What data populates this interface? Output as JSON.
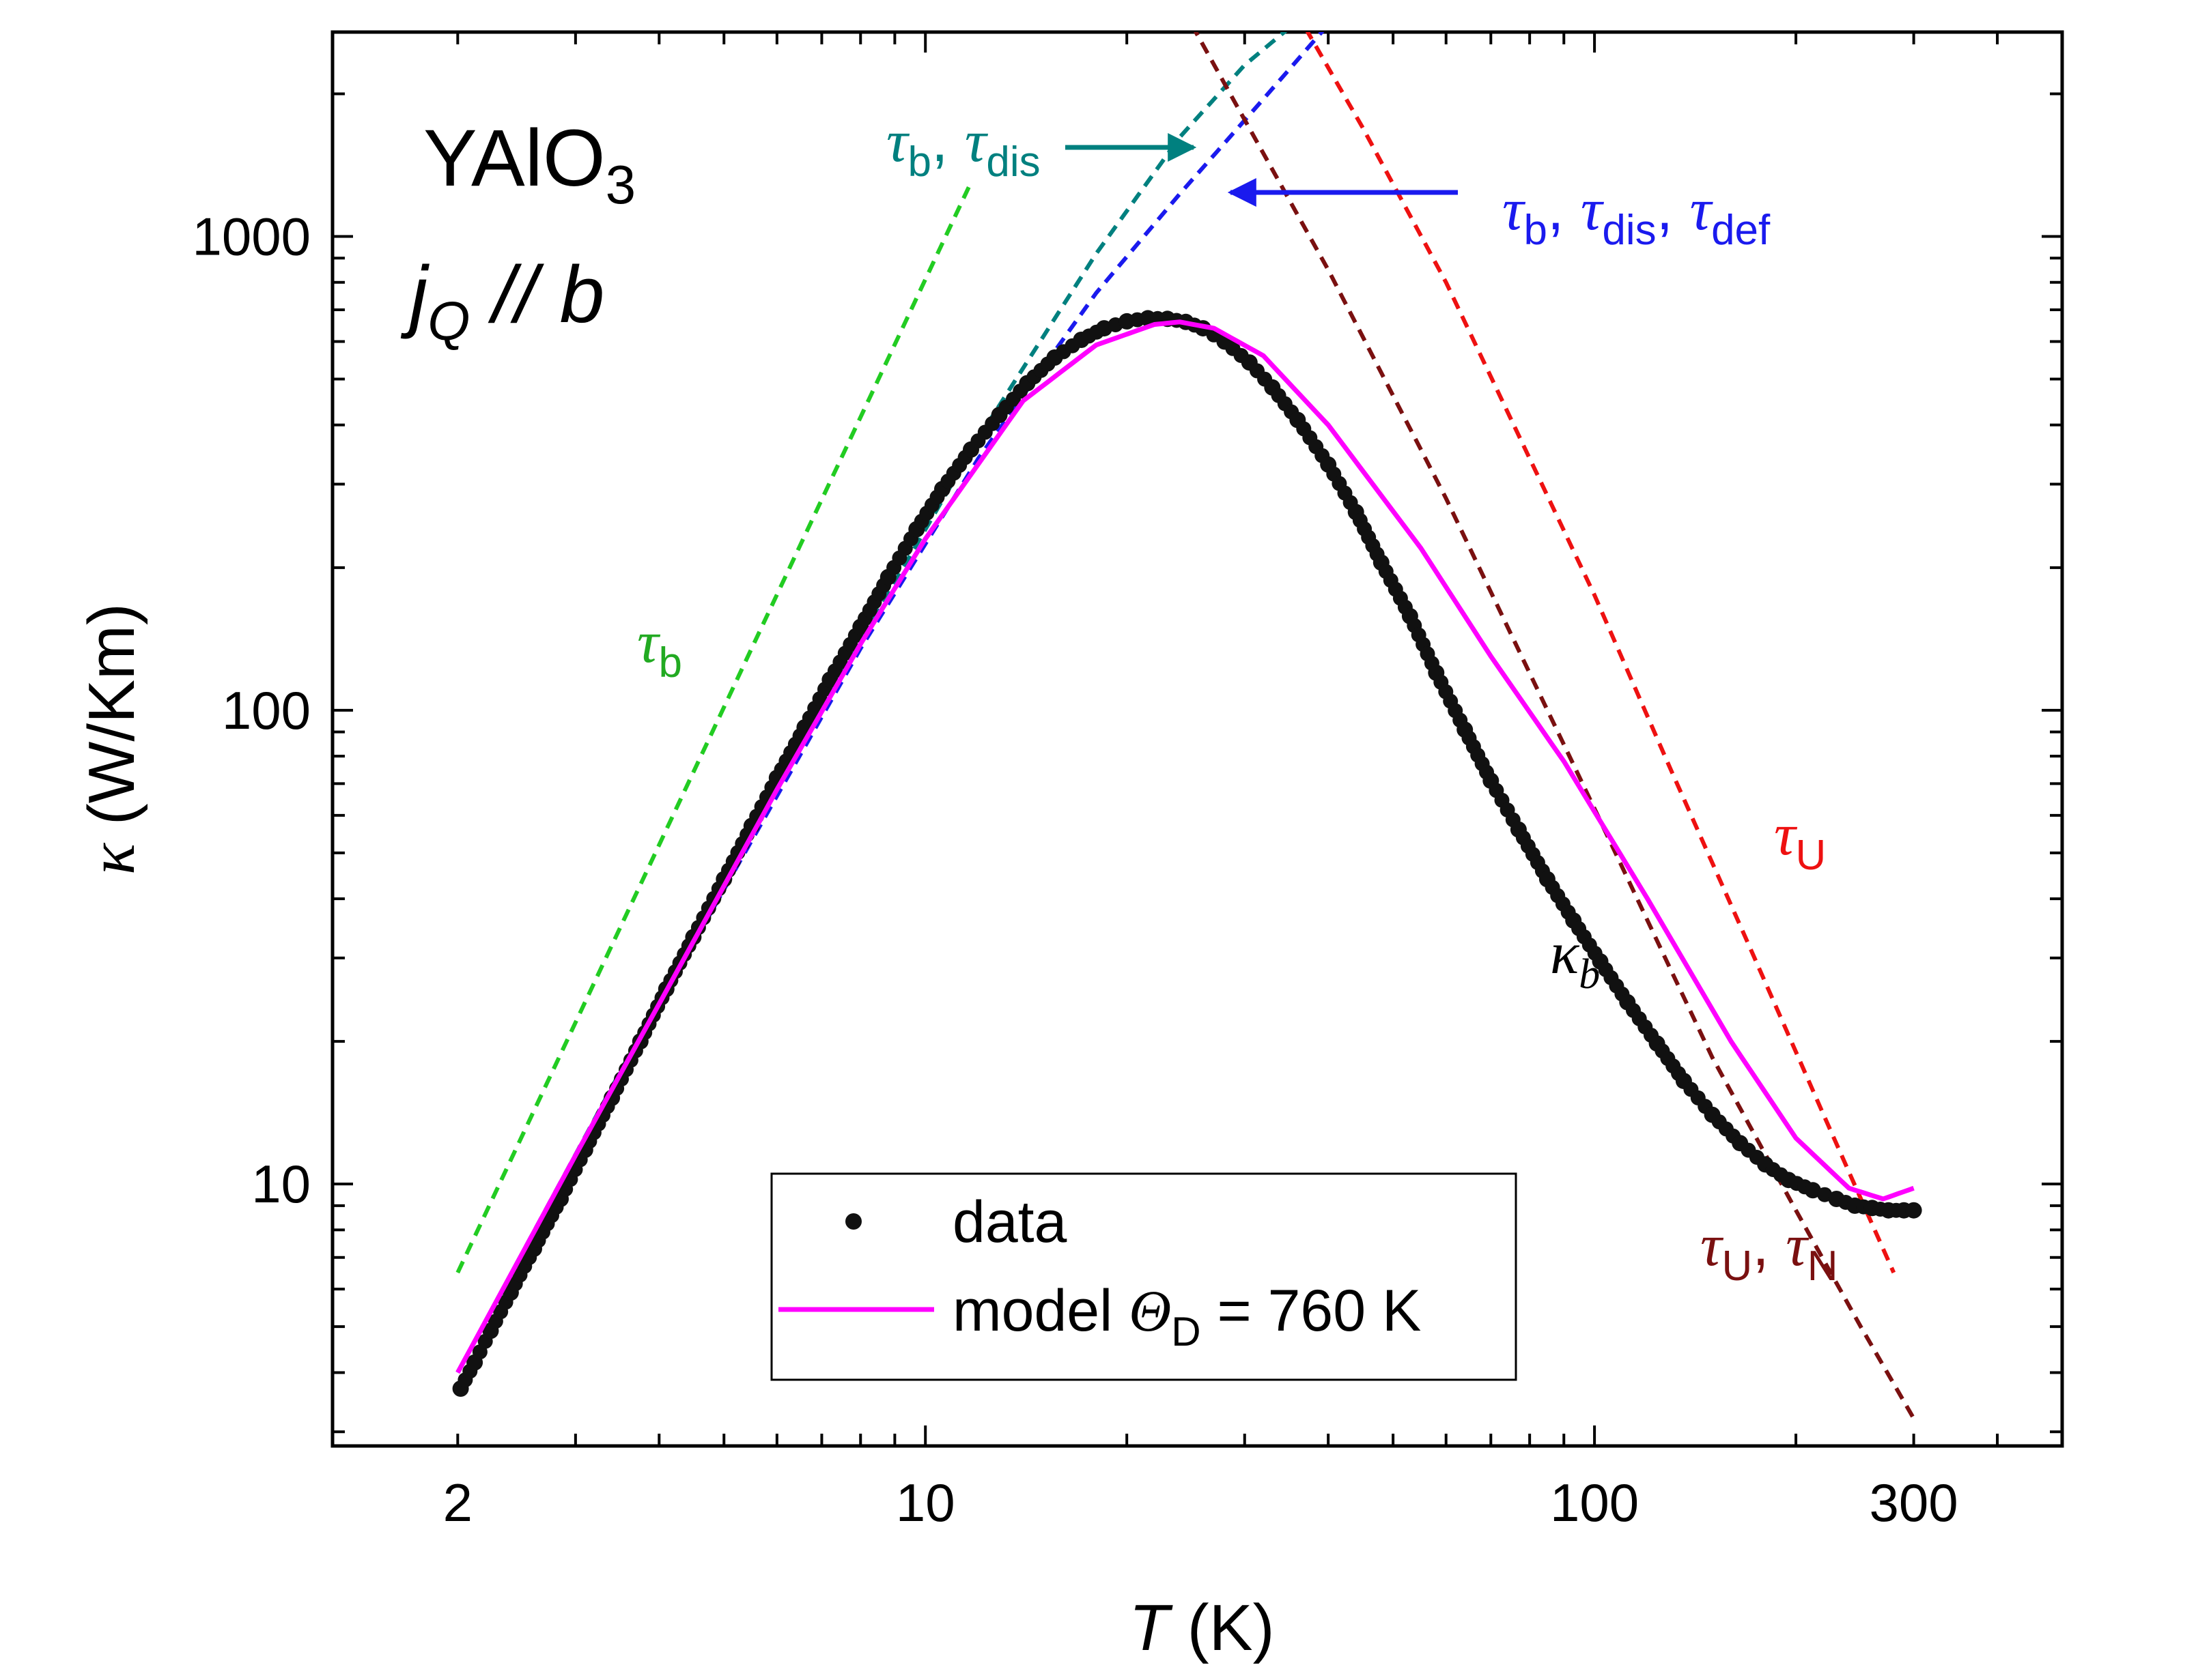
{
  "chart_data": {
    "type": "scatter",
    "title": "",
    "sample": {
      "formula_main": "YAlO",
      "formula_sub": "3",
      "direction_prefix": "j",
      "direction_sub": "Q",
      "direction_suffix": " // b"
    },
    "xlabel": {
      "var": "T",
      "unit": " (K)"
    },
    "ylabel": {
      "var": "κ",
      "unit": " (W/Km)"
    },
    "xscale": "log",
    "yscale": "log",
    "xlim": [
      1.3,
      500
    ],
    "ylim": [
      2.8,
      2700
    ],
    "xticks": [
      2,
      10,
      100,
      300
    ],
    "yticks": [
      10,
      100,
      1000
    ],
    "series": [
      {
        "name": "data",
        "kind": "points",
        "color": "#111111",
        "x": [
          2.02,
          2.12,
          2.24,
          2.4,
          2.6,
          2.85,
          3.1,
          3.4,
          3.75,
          4.1,
          4.5,
          5.0,
          5.5,
          6.0,
          6.6,
          7.2,
          8.0,
          8.8,
          9.7,
          10.6,
          11.7,
          12.9,
          14.2,
          15.6,
          17.1,
          18.5,
          20.0,
          21.5,
          23.0,
          24.5,
          26.0,
          28.0,
          30.5,
          33.0,
          36.0,
          40.0,
          44.0,
          48.0,
          53.0,
          58.0,
          64.0,
          70.0,
          77.0,
          85.0,
          93.0,
          102.0,
          112.0,
          124.0,
          136.0,
          150.0,
          165.0,
          180.0,
          195.0,
          212.0,
          230.0,
          245.0,
          260.0,
          275.0,
          290.0,
          300.0
        ],
        "y": [
          3.7,
          4.2,
          4.9,
          5.9,
          7.3,
          9.3,
          11.8,
          15.2,
          20.0,
          25.8,
          33.2,
          44.0,
          57.0,
          72.0,
          92.0,
          116.0,
          150.0,
          191.0,
          241.0,
          293.0,
          355.0,
          420.0,
          490.0,
          555.0,
          605.0,
          640.0,
          662.0,
          672.0,
          670.0,
          660.0,
          640.0,
          600.0,
          542.0,
          480.0,
          410.0,
          330.0,
          262.0,
          205.0,
          158.0,
          120.0,
          91.0,
          71.0,
          56.0,
          44.0,
          36.0,
          29.5,
          24.2,
          19.8,
          16.5,
          14.0,
          12.2,
          11.0,
          10.2,
          9.7,
          9.3,
          9.0,
          8.9,
          8.8,
          8.8,
          8.8
        ]
      },
      {
        "name": "model ΘD = 760 K",
        "kind": "line",
        "style": "solid",
        "color": "#ff00ff",
        "x": [
          2.0,
          3.0,
          4.0,
          6.0,
          8.0,
          10.0,
          14.0,
          18.0,
          22.0,
          24.0,
          27.0,
          32.0,
          40.0,
          55.0,
          70.0,
          90.0,
          120.0,
          160.0,
          200.0,
          240.0,
          270.0,
          300.0
        ],
        "y": [
          4.0,
          11.5,
          24.0,
          68.0,
          138.0,
          230.0,
          450.0,
          590.0,
          652.0,
          660.0,
          640.0,
          560.0,
          400.0,
          220.0,
          130.0,
          78.0,
          40.0,
          20.0,
          12.5,
          9.8,
          9.3,
          9.8
        ]
      },
      {
        "name": "τb",
        "kind": "line",
        "style": "dashed",
        "color": "#22cc22",
        "x": [
          2.0,
          11.7
        ],
        "y": [
          6.5,
          1300.0
        ]
      },
      {
        "name": "τb, τdis",
        "kind": "line",
        "style": "dashed",
        "color": "#00807f",
        "x": [
          2.0,
          4.0,
          8.0,
          12.0,
          18.0,
          24.0,
          30.0,
          36.0
        ],
        "y": [
          4.0,
          24.5,
          140.0,
          375.0,
          920.0,
          1620.0,
          2300.0,
          2850.0
        ]
      },
      {
        "name": "τb, τdis, τdef",
        "kind": "line",
        "style": "dashed",
        "color": "#1a1aee",
        "x": [
          2.0,
          4.0,
          8.0,
          12.0,
          18.0,
          24.0,
          32.0,
          40.0
        ],
        "y": [
          4.0,
          24.0,
          135.0,
          340.0,
          760.0,
          1230.0,
          1950.0,
          2800.0
        ]
      },
      {
        "name": "τU",
        "kind": "line",
        "style": "dashed",
        "color": "#ee1111",
        "x": [
          37.0,
          45.0,
          60.0,
          80.0,
          100.0,
          130.0,
          170.0,
          220.0,
          280.0
        ],
        "y": [
          2750.0,
          1700.0,
          800.0,
          340.0,
          175.0,
          75.0,
          32.0,
          14.0,
          6.5
        ]
      },
      {
        "name": "τU, τN",
        "kind": "line",
        "style": "dashed",
        "color": "#7a1010",
        "x": [
          25.0,
          40.0,
          60.0,
          100.0,
          150.0,
          200.0,
          250.0,
          300.0
        ],
        "y": [
          2800.0,
          850.0,
          280.0,
          62.0,
          18.5,
          8.8,
          5.0,
          3.2
        ]
      }
    ],
    "annotations": {
      "tau_b": {
        "main": "τ",
        "sub": "b"
      },
      "tau_b_dis": {
        "m1": "τ",
        "s1": "b",
        "sep": ", ",
        "m2": "τ",
        "s2": "dis"
      },
      "tau_b_dis_def": {
        "m1": "τ",
        "s1": "b",
        "sep1": ", ",
        "m2": "τ",
        "s2": "dis",
        "sep2": ", ",
        "m3": "τ",
        "s3": "def"
      },
      "tau_U": {
        "main": "τ",
        "sub": "U"
      },
      "tau_U_N": {
        "m1": "τ",
        "s1": "U",
        "sep": ", ",
        "m2": "τ",
        "s2": "N"
      },
      "kappa_b": {
        "main": "κ",
        "sub": "b"
      }
    },
    "legend": {
      "position": "bottom-center",
      "entries": [
        {
          "label": "data"
        },
        {
          "label_prefix": "model ",
          "label_sym": "Θ",
          "label_sub": "D",
          "label_suffix": " = 760 K"
        }
      ]
    }
  }
}
